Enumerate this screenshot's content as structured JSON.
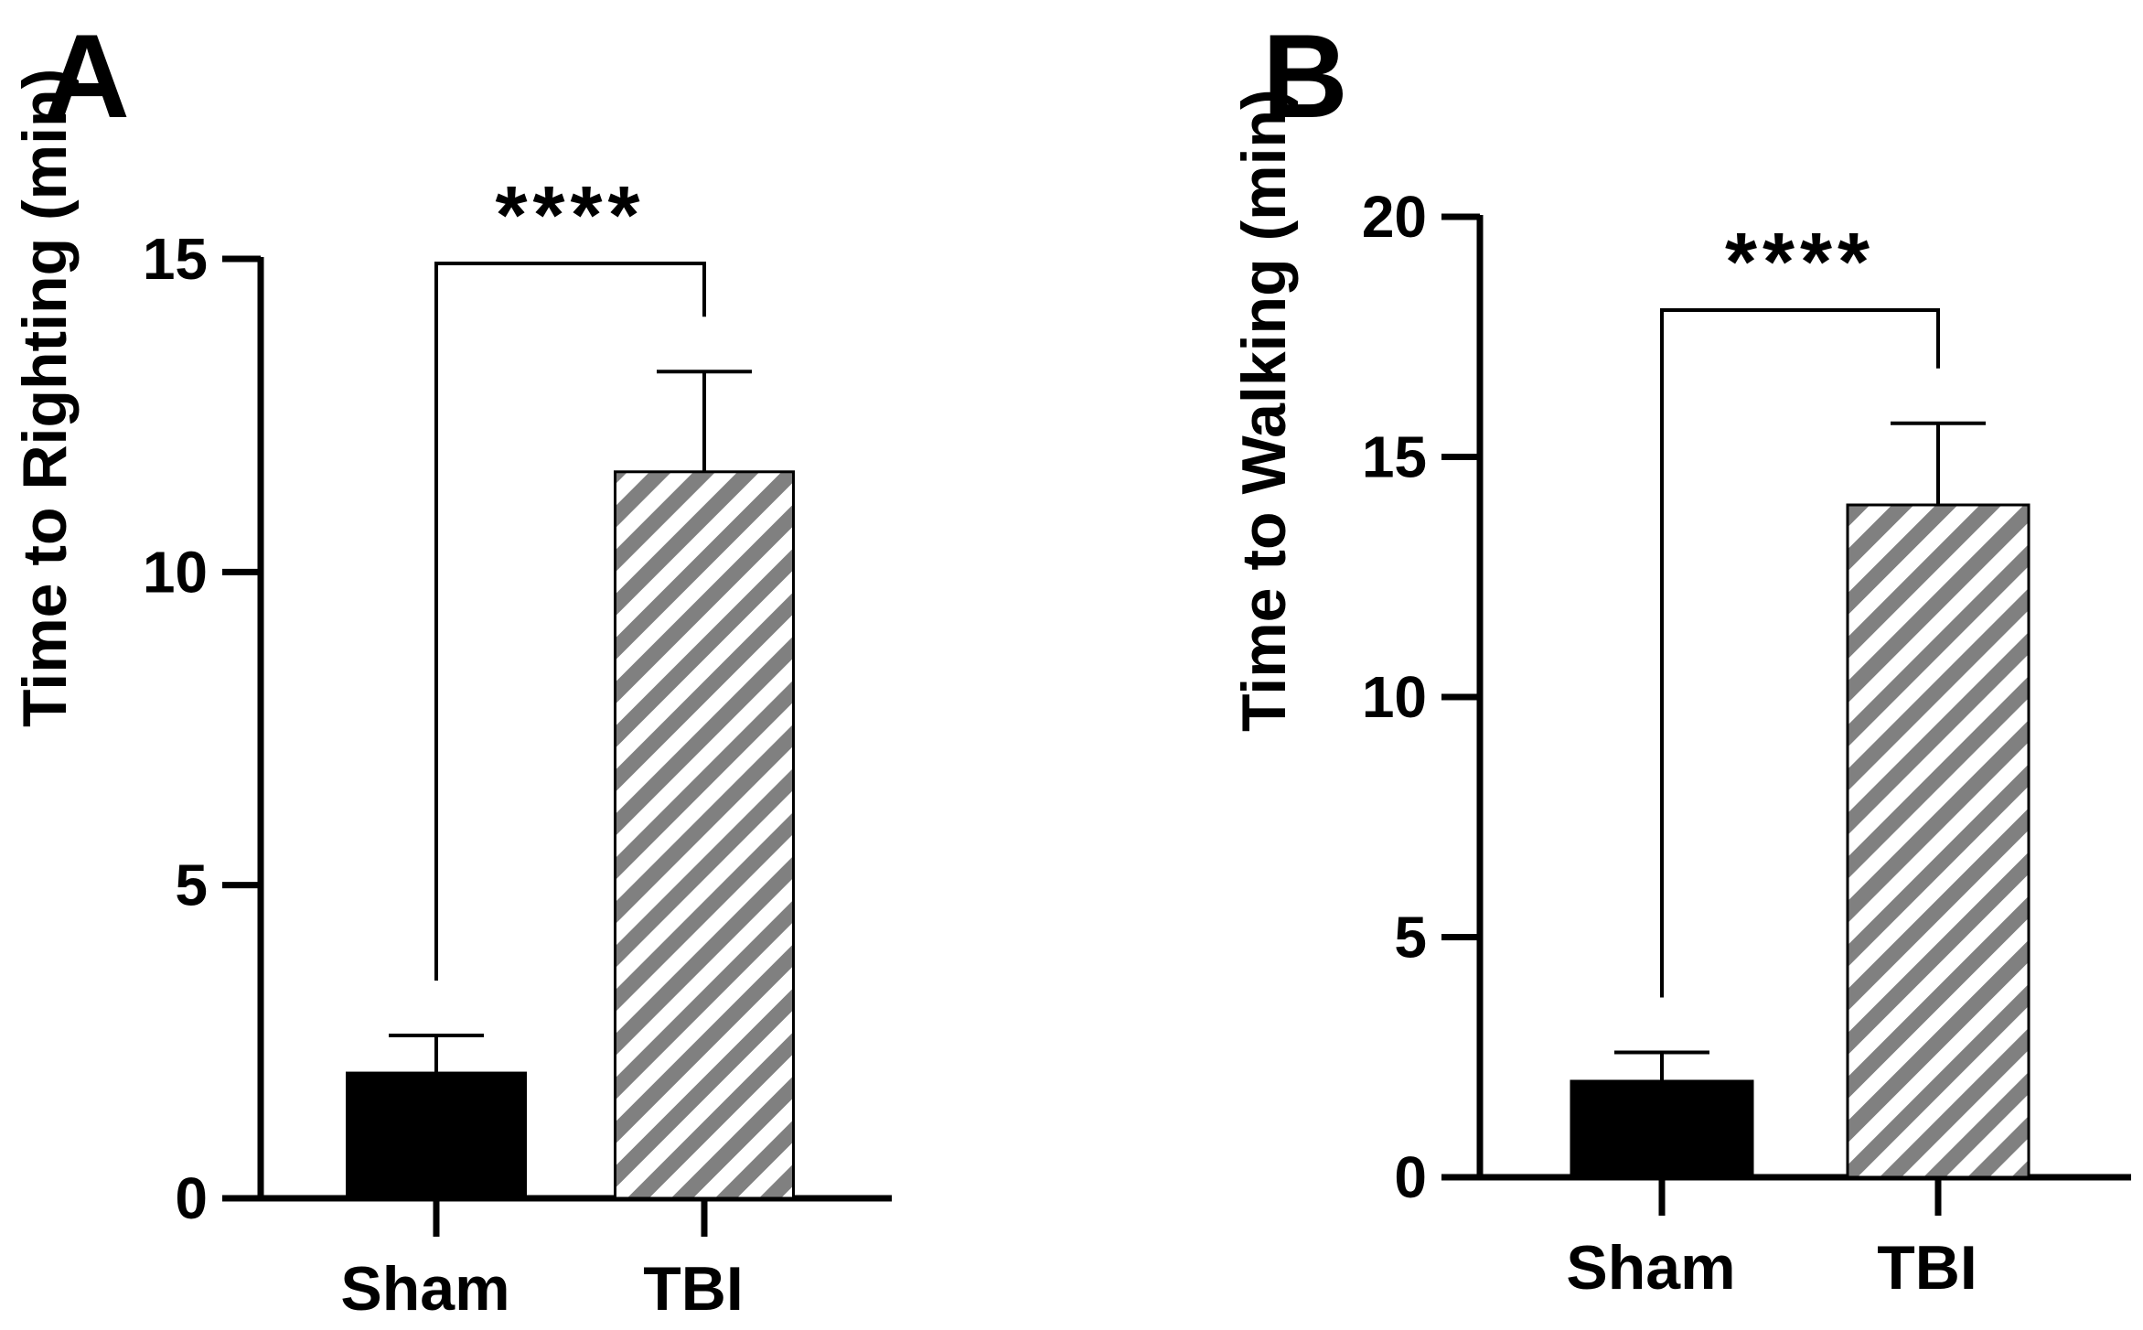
{
  "colors": {
    "sham_fill": "#000000",
    "tbi_fill": "#808080",
    "tbi_stripe": "#ffffff",
    "axis": "#000000"
  },
  "chart_data": [
    {
      "type": "bar",
      "panel": "A",
      "categories": [
        "Sham",
        "TBI"
      ],
      "values": [
        2.0,
        11.6
      ],
      "error_bars": [
        0.6,
        1.6
      ],
      "ylabel": "Time to Righting (min)",
      "xlabel": "",
      "ylim": [
        0,
        15
      ],
      "yticks": [
        0,
        5,
        10,
        15
      ],
      "significance": {
        "between": [
          "Sham",
          "TBI"
        ],
        "label": "****"
      }
    },
    {
      "type": "bar",
      "panel": "B",
      "categories": [
        "Sham",
        "TBI"
      ],
      "values": [
        2.0,
        14.0
      ],
      "error_bars": [
        0.6,
        1.7
      ],
      "ylabel": "Time to Walking (min)",
      "xlabel": "",
      "ylim": [
        0,
        20
      ],
      "yticks": [
        0,
        5,
        10,
        15,
        20
      ],
      "significance": {
        "between": [
          "Sham",
          "TBI"
        ],
        "label": "****"
      }
    }
  ]
}
